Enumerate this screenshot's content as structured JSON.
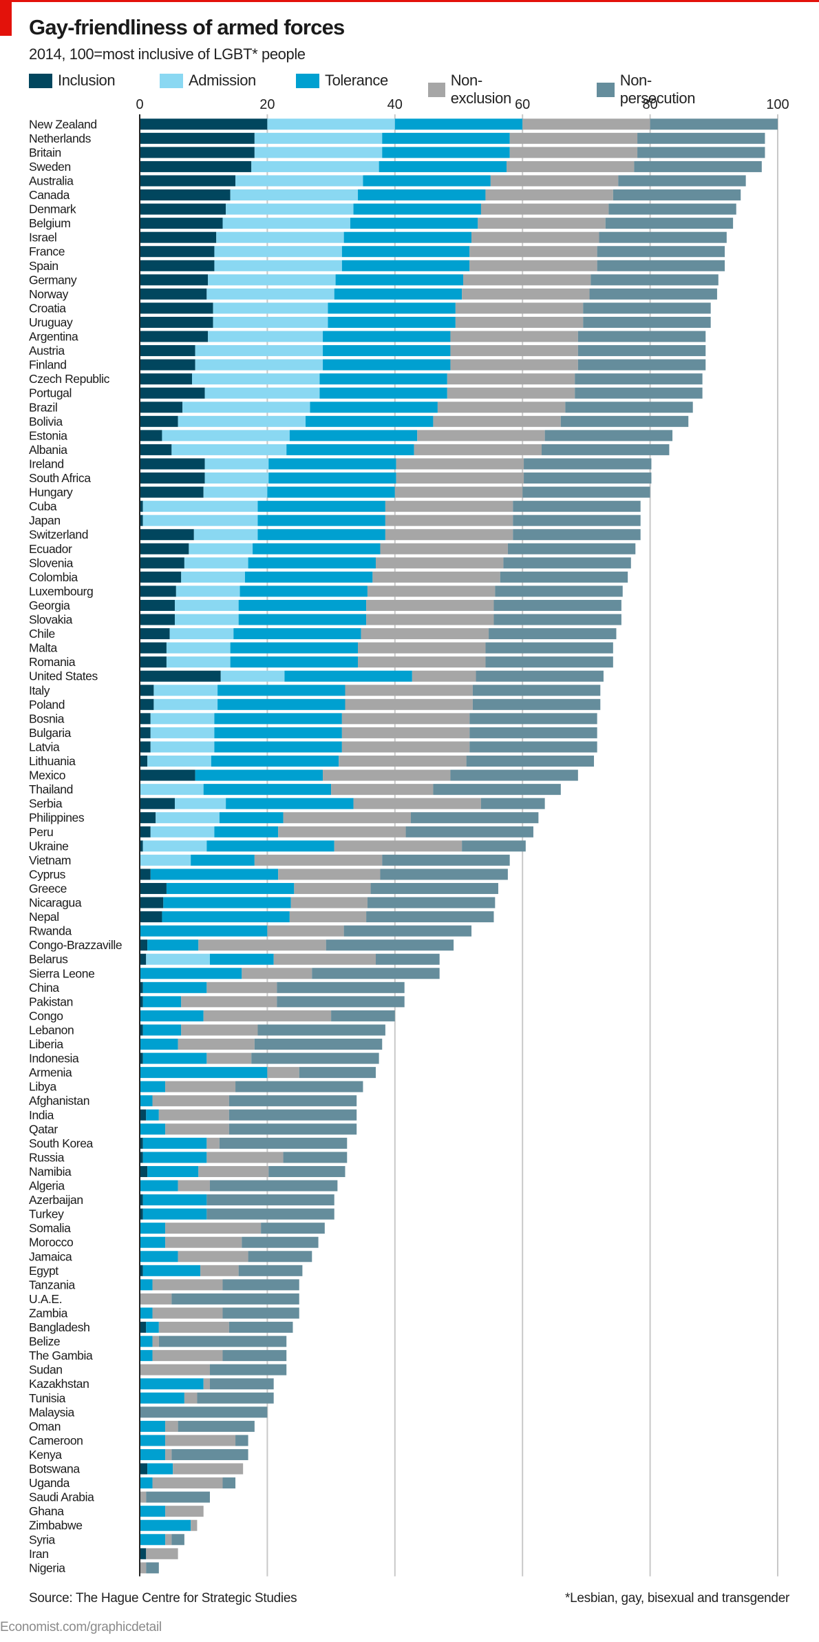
{
  "header": {
    "title": "Gay-friendliness of armed forces",
    "subtitle": "2014, 100=most inclusive of LGBT* people"
  },
  "footer": {
    "source": "Source: The Hague Centre for Strategic Studies",
    "footnote": "*Lesbian, gay, bisexual and transgender",
    "url": "Economist.com/graphicdetail"
  },
  "colors": {
    "accent": "#e3120b",
    "Inclusion": "#01465e",
    "Admission": "#8ad8f2",
    "Tolerance": "#00a0d0",
    "Non-exclusion": "#a6a6a6",
    "Non-persecution": "#658d9c",
    "grid": "#c8c8c8",
    "axis": "#222222"
  },
  "chart_data": {
    "type": "bar",
    "orientation": "horizontal",
    "stacked": true,
    "title": "Gay-friendliness of armed forces",
    "subtitle": "2014, 100=most inclusive of LGBT* people",
    "xlabel": "",
    "ylabel": "",
    "xlim": [
      0,
      100
    ],
    "xticks": [
      0,
      20,
      40,
      60,
      80,
      100
    ],
    "grid": true,
    "legend_position": "top",
    "series_names": [
      "Inclusion",
      "Admission",
      "Tolerance",
      "Non-exclusion",
      "Non-persecution"
    ],
    "categories": [
      "New Zealand",
      "Netherlands",
      "Britain",
      "Sweden",
      "Australia",
      "Canada",
      "Denmark",
      "Belgium",
      "Israel",
      "France",
      "Spain",
      "Germany",
      "Norway",
      "Croatia",
      "Uruguay",
      "Argentina",
      "Austria",
      "Finland",
      "Czech Republic",
      "Portugal",
      "Brazil",
      "Bolivia",
      "Estonia",
      "Albania",
      "Ireland",
      "South Africa",
      "Hungary",
      "Cuba",
      "Japan",
      "Switzerland",
      "Ecuador",
      "Slovenia",
      "Colombia",
      "Luxembourg",
      "Georgia",
      "Slovakia",
      "Chile",
      "Malta",
      "Romania",
      "United States",
      "Italy",
      "Poland",
      "Bosnia",
      "Bulgaria",
      "Latvia",
      "Lithuania",
      "Mexico",
      "Thailand",
      "Serbia",
      "Philippines",
      "Peru",
      "Ukraine",
      "Vietnam",
      "Cyprus",
      "Greece",
      "Nicaragua",
      "Nepal",
      "Rwanda",
      "Congo-Brazzaville",
      "Belarus",
      "Sierra Leone",
      "China",
      "Pakistan",
      "Congo",
      "Lebanon",
      "Liberia",
      "Indonesia",
      "Armenia",
      "Libya",
      "Afghanistan",
      "India",
      "Qatar",
      "South Korea",
      "Russia",
      "Namibia",
      "Algeria",
      "Azerbaijan",
      "Turkey",
      "Somalia",
      "Morocco",
      "Jamaica",
      "Egypt",
      "Tanzania",
      "U.A.E.",
      "Zambia",
      "Bangladesh",
      "Belize",
      "The Gambia",
      "Sudan",
      "Kazakhstan",
      "Tunisia",
      "Malaysia",
      "Oman",
      "Cameroon",
      "Kenya",
      "Botswana",
      "Uganda",
      "Saudi Arabia",
      "Ghana",
      "Zimbabwe",
      "Syria",
      "Iran",
      "Nigeria"
    ],
    "values": [
      [
        20,
        20,
        20,
        20,
        20
      ],
      [
        18,
        20,
        20,
        20,
        20
      ],
      [
        18,
        20,
        20,
        20,
        20
      ],
      [
        17.5,
        20,
        20,
        20,
        20
      ],
      [
        15,
        20,
        20,
        20,
        20
      ],
      [
        14.2,
        20,
        20,
        20,
        20
      ],
      [
        13.5,
        20,
        20,
        20,
        20
      ],
      [
        13,
        20,
        20,
        20,
        20
      ],
      [
        12,
        20,
        20,
        20,
        20
      ],
      [
        11.7,
        20,
        20,
        20,
        20
      ],
      [
        11.7,
        20,
        20,
        20,
        20
      ],
      [
        10.7,
        20,
        20,
        20,
        20
      ],
      [
        10.5,
        20,
        20,
        20,
        20
      ],
      [
        11.5,
        18,
        20,
        20,
        20
      ],
      [
        11.5,
        18,
        20,
        20,
        20
      ],
      [
        10.7,
        18,
        20,
        20,
        20
      ],
      [
        8.7,
        20,
        20,
        20,
        20
      ],
      [
        8.7,
        20,
        20,
        20,
        20
      ],
      [
        8.2,
        20,
        20,
        20,
        20
      ],
      [
        10.2,
        18,
        20,
        20,
        20
      ],
      [
        6.7,
        20,
        20,
        20,
        20
      ],
      [
        6,
        20,
        20,
        20,
        20
      ],
      [
        3.5,
        20,
        20,
        20,
        20
      ],
      [
        5,
        18,
        20,
        20,
        20
      ],
      [
        10.2,
        10,
        20,
        20,
        20
      ],
      [
        10.2,
        10,
        20,
        20,
        20
      ],
      [
        10,
        10,
        20,
        20,
        20
      ],
      [
        0.5,
        18,
        20,
        20,
        20
      ],
      [
        0.5,
        18,
        20,
        20,
        20
      ],
      [
        8.5,
        10,
        20,
        20,
        20
      ],
      [
        7.7,
        10,
        20,
        20,
        20
      ],
      [
        7,
        10,
        20,
        20,
        20
      ],
      [
        6.5,
        10,
        20,
        20,
        20
      ],
      [
        5.7,
        10,
        20,
        20,
        20
      ],
      [
        5.5,
        10,
        20,
        20,
        20
      ],
      [
        5.5,
        10,
        20,
        20,
        20
      ],
      [
        4.7,
        10,
        20,
        20,
        20
      ],
      [
        4.2,
        10,
        20,
        20,
        20
      ],
      [
        4.2,
        10,
        20,
        20,
        20
      ],
      [
        12.7,
        10,
        20,
        10,
        20
      ],
      [
        2.2,
        10,
        20,
        20,
        20
      ],
      [
        2.2,
        10,
        20,
        20,
        20
      ],
      [
        1.7,
        10,
        20,
        20,
        20
      ],
      [
        1.7,
        10,
        20,
        20,
        20
      ],
      [
        1.7,
        10,
        20,
        20,
        20
      ],
      [
        1.2,
        10,
        20,
        20,
        20
      ],
      [
        8.7,
        0,
        20,
        20,
        20
      ],
      [
        0,
        10,
        20,
        16,
        20
      ],
      [
        5.5,
        8,
        20,
        20,
        10
      ],
      [
        2.5,
        10,
        10,
        20,
        20
      ],
      [
        1.7,
        10,
        10,
        20,
        20
      ],
      [
        0.5,
        10,
        20,
        20,
        10
      ],
      [
        0,
        8,
        10,
        20,
        20
      ],
      [
        1.7,
        0,
        20,
        16,
        20
      ],
      [
        4.2,
        0,
        20,
        12,
        20
      ],
      [
        3.7,
        0,
        20,
        12,
        20
      ],
      [
        3.5,
        0,
        20,
        12,
        20
      ],
      [
        0,
        0,
        20,
        12,
        20
      ],
      [
        1.2,
        0,
        8,
        20,
        20
      ],
      [
        1,
        10,
        10,
        16,
        10
      ],
      [
        0,
        0,
        16,
        11,
        20
      ],
      [
        0.5,
        0,
        10,
        11,
        20
      ],
      [
        0.5,
        0,
        6,
        15,
        20
      ],
      [
        0,
        0,
        10,
        20,
        10
      ],
      [
        0.5,
        0,
        6,
        12,
        20
      ],
      [
        0,
        0,
        6,
        12,
        20
      ],
      [
        0.5,
        0,
        10,
        7,
        20
      ],
      [
        0,
        0,
        20,
        5,
        12
      ],
      [
        0,
        0,
        4,
        11,
        20
      ],
      [
        0,
        0,
        2,
        12,
        20
      ],
      [
        1,
        0,
        2,
        11,
        20
      ],
      [
        0,
        0,
        4,
        10,
        20
      ],
      [
        0.5,
        0,
        10,
        2,
        20
      ],
      [
        0.5,
        0,
        10,
        12,
        10
      ],
      [
        1.2,
        0,
        8,
        11,
        12
      ],
      [
        0,
        0,
        6,
        5,
        20
      ],
      [
        0.5,
        0,
        10,
        0,
        20
      ],
      [
        0.5,
        0,
        10,
        0,
        20
      ],
      [
        0,
        0,
        4,
        15,
        10
      ],
      [
        0,
        0,
        4,
        12,
        12
      ],
      [
        0,
        0,
        6,
        11,
        10
      ],
      [
        0.5,
        0,
        9,
        6,
        10
      ],
      [
        0,
        0,
        2,
        11,
        12
      ],
      [
        0,
        0,
        0,
        5,
        20
      ],
      [
        0,
        0,
        2,
        11,
        12
      ],
      [
        1,
        0,
        2,
        11,
        10
      ],
      [
        0,
        0,
        2,
        1,
        20
      ],
      [
        0,
        0,
        2,
        11,
        10
      ],
      [
        0,
        0,
        0,
        11,
        12
      ],
      [
        0,
        0,
        10,
        1,
        10
      ],
      [
        0,
        0,
        7,
        2,
        12
      ],
      [
        0,
        0,
        0,
        0,
        20
      ],
      [
        0,
        0,
        4,
        2,
        12
      ],
      [
        0,
        0,
        4,
        11,
        2
      ],
      [
        0,
        0,
        4,
        1,
        12
      ],
      [
        1.2,
        0,
        4,
        11,
        0
      ],
      [
        0,
        0,
        2,
        11,
        2
      ],
      [
        0,
        0,
        0,
        1,
        10
      ],
      [
        0,
        0,
        4,
        6,
        0
      ],
      [
        0,
        0,
        8,
        1,
        0
      ],
      [
        0,
        0,
        4,
        1,
        2
      ],
      [
        1,
        0,
        0,
        5,
        0
      ],
      [
        0,
        0,
        0,
        1,
        2
      ]
    ]
  }
}
